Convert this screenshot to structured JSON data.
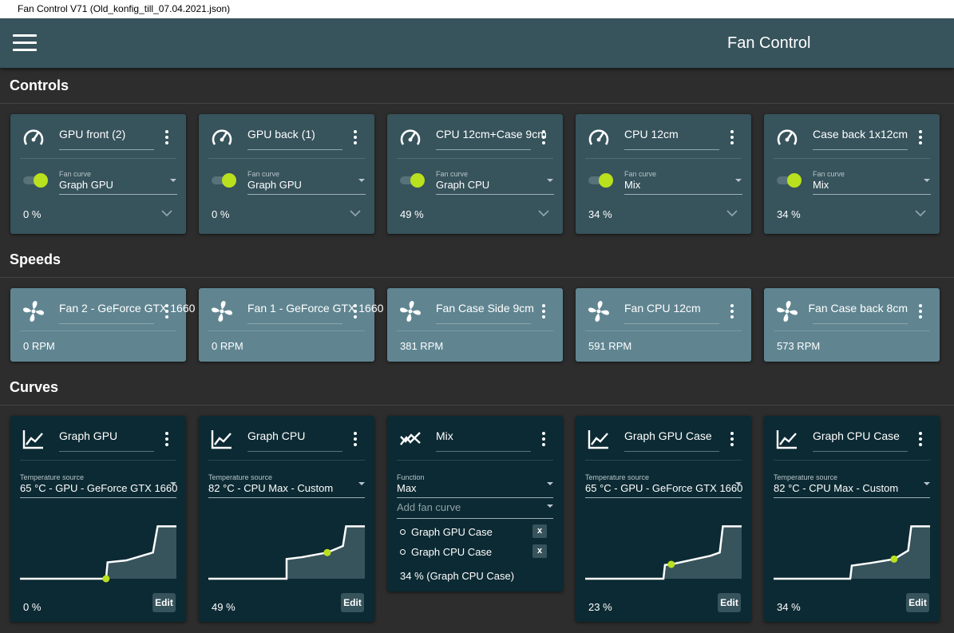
{
  "window": {
    "title": "Fan Control V71 (Old_konfig_till_07.04.2021.json)"
  },
  "appbar": {
    "title": "Fan Control"
  },
  "sections": {
    "controls": "Controls",
    "speeds": "Speeds",
    "curves": "Curves"
  },
  "colors": {
    "accent": "#b9e11e",
    "appbar": "#37535c",
    "control_card": "#37535c",
    "speed_card": "#608591",
    "curve_card": "#0c2a33",
    "background": "#2d2d2d"
  },
  "controls": [
    {
      "name": "GPU front (2)",
      "curve_label": "Fan curve",
      "curve": "Graph GPU",
      "percent": "0 %",
      "icon": "speedometer-icon",
      "enabled": true
    },
    {
      "name": "GPU back (1)",
      "curve_label": "Fan curve",
      "curve": "Graph GPU",
      "percent": "0 %",
      "icon": "speedometer-icon",
      "enabled": true
    },
    {
      "name": "CPU 12cm+Case 9cm",
      "curve_label": "Fan curve",
      "curve": "Graph CPU",
      "percent": "49 %",
      "icon": "speedometer-icon",
      "enabled": true
    },
    {
      "name": "CPU 12cm",
      "curve_label": "Fan curve",
      "curve": "Mix",
      "percent": "34 %",
      "icon": "speedometer-icon",
      "enabled": true
    },
    {
      "name": "Case back 1x12cm",
      "curve_label": "Fan curve",
      "curve": "Mix",
      "percent": "34 %",
      "icon": "speedometer-icon",
      "enabled": true
    }
  ],
  "speeds": [
    {
      "name": "Fan 2 - GeForce GTX 1660",
      "rpm": "0 RPM",
      "icon": "fan-icon"
    },
    {
      "name": "Fan 1 - GeForce GTX 1660",
      "rpm": "0 RPM",
      "icon": "fan-icon"
    },
    {
      "name": "Fan Case Side 9cm",
      "rpm": "381 RPM",
      "icon": "fan-icon"
    },
    {
      "name": "Fan CPU 12cm",
      "rpm": "591 RPM",
      "icon": "fan-icon"
    },
    {
      "name": "Fan Case back 8cm",
      "rpm": "573 RPM",
      "icon": "fan-icon"
    }
  ],
  "curves": [
    {
      "name": "Graph GPU",
      "icon": "graph-icon",
      "source_label": "Temperature source",
      "source": "65 °C - GPU - GeForce GTX 1660",
      "value": "0 %",
      "edit_label": "Edit",
      "points": [
        [
          0,
          0
        ],
        [
          0.55,
          0
        ],
        [
          0.56,
          0.25
        ],
        [
          0.68,
          0.28
        ],
        [
          0.85,
          0.4
        ],
        [
          0.88,
          0.8
        ],
        [
          1,
          0.8
        ]
      ],
      "operating_point": [
        0.55,
        0
      ]
    },
    {
      "name": "Graph CPU",
      "icon": "graph-icon",
      "source_label": "Temperature source",
      "source": "82 °C - CPU Max - Custom",
      "value": "49 %",
      "edit_label": "Edit",
      "points": [
        [
          0,
          0
        ],
        [
          0.5,
          0
        ],
        [
          0.5,
          0.3
        ],
        [
          0.6,
          0.33
        ],
        [
          0.76,
          0.4
        ],
        [
          0.86,
          0.5
        ],
        [
          0.88,
          0.8
        ],
        [
          1,
          0.8
        ]
      ],
      "operating_point": [
        0.76,
        0.4
      ]
    },
    {
      "name": "Graph GPU Case",
      "icon": "graph-icon",
      "source_label": "Temperature source",
      "source": "65 °C - GPU - GeForce GTX 1660",
      "value": "23 %",
      "edit_label": "Edit",
      "points": [
        [
          0,
          0
        ],
        [
          0.5,
          0
        ],
        [
          0.51,
          0.21
        ],
        [
          0.55,
          0.22
        ],
        [
          0.8,
          0.35
        ],
        [
          0.86,
          0.4
        ],
        [
          0.88,
          0.8
        ],
        [
          1,
          0.8
        ]
      ],
      "operating_point": [
        0.55,
        0.22
      ]
    },
    {
      "name": "Graph CPU Case",
      "icon": "graph-icon",
      "source_label": "Temperature source",
      "source": "82 °C - CPU Max - Custom",
      "value": "34 %",
      "edit_label": "Edit",
      "points": [
        [
          0,
          0
        ],
        [
          0.49,
          0
        ],
        [
          0.5,
          0.2
        ],
        [
          0.62,
          0.24
        ],
        [
          0.77,
          0.3
        ],
        [
          0.86,
          0.43
        ],
        [
          0.88,
          0.8
        ],
        [
          1,
          0.8
        ]
      ],
      "operating_point": [
        0.77,
        0.3
      ]
    }
  ],
  "mix": {
    "name": "Mix",
    "icon": "mix-icon",
    "function_label": "Function",
    "function": "Max",
    "add_placeholder": "Add fan curve",
    "items": [
      "Graph GPU Case",
      "Graph CPU Case"
    ],
    "remove_label": "x",
    "result": "34 % (Graph CPU Case)"
  }
}
